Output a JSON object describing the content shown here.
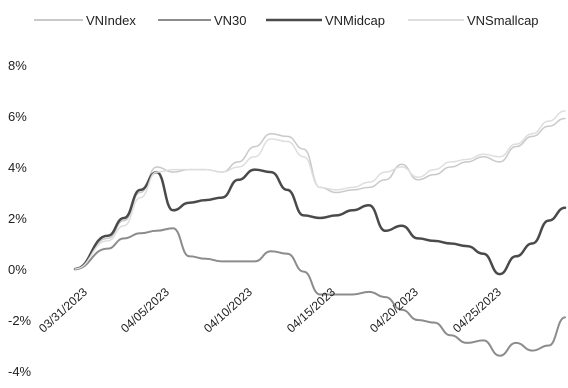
{
  "chart_data": {
    "type": "line",
    "title": "",
    "xlabel": "",
    "ylabel": "",
    "ylim": [
      -4,
      8
    ],
    "y_ticks": [
      "-4%",
      "-2%",
      "0%",
      "2%",
      "4%",
      "6%",
      "8%"
    ],
    "x_dates": [
      "03/31/2023",
      "04/05/2023",
      "04/10/2023",
      "04/15/2023",
      "04/20/2023",
      "04/25/2023"
    ],
    "legend_position": "top",
    "grid": false,
    "series": [
      {
        "name": "VNIndex",
        "color": "#c9c9c9",
        "width": 1.5,
        "points": [
          [
            0,
            0
          ],
          [
            2,
            1.2
          ],
          [
            3,
            1.9
          ],
          [
            4,
            3
          ],
          [
            5,
            4
          ],
          [
            6,
            3.8
          ],
          [
            7,
            3.9
          ],
          [
            8,
            3.9
          ],
          [
            9,
            3.8
          ],
          [
            10,
            4.2
          ],
          [
            11,
            4.8
          ],
          [
            12,
            5.3
          ],
          [
            13,
            5.2
          ],
          [
            14,
            4.7
          ],
          [
            15,
            3.2
          ],
          [
            16,
            3
          ],
          [
            17,
            3.1
          ],
          [
            18,
            3.2
          ],
          [
            19,
            3.5
          ],
          [
            20,
            4.1
          ],
          [
            21,
            3.5
          ],
          [
            22,
            3.7
          ],
          [
            23,
            4
          ],
          [
            24,
            4.2
          ],
          [
            25,
            4.4
          ],
          [
            26,
            4.2
          ],
          [
            27,
            4.8
          ],
          [
            28,
            5.2
          ],
          [
            29,
            5.6
          ],
          [
            30,
            5.9
          ]
        ]
      },
      {
        "name": "VN30",
        "color": "#8c8c8c",
        "width": 2,
        "points": [
          [
            0,
            0
          ],
          [
            2,
            0.8
          ],
          [
            3,
            1.2
          ],
          [
            4,
            1.4
          ],
          [
            5,
            1.5
          ],
          [
            6,
            1.6
          ],
          [
            7,
            0.5
          ],
          [
            8,
            0.4
          ],
          [
            9,
            0.3
          ],
          [
            10,
            0.3
          ],
          [
            11,
            0.3
          ],
          [
            12,
            0.7
          ],
          [
            13,
            0.6
          ],
          [
            14,
            -0.1
          ],
          [
            15,
            -1
          ],
          [
            16,
            -1
          ],
          [
            17,
            -1
          ],
          [
            18,
            -0.9
          ],
          [
            19,
            -1.1
          ],
          [
            20,
            -1.6
          ],
          [
            21,
            -2
          ],
          [
            22,
            -2.1
          ],
          [
            23,
            -2.6
          ],
          [
            24,
            -2.9
          ],
          [
            25,
            -2.8
          ],
          [
            26,
            -3.4
          ],
          [
            27,
            -2.9
          ],
          [
            28,
            -3.2
          ],
          [
            29,
            -3
          ],
          [
            30,
            -1.9
          ]
        ]
      },
      {
        "name": "VNMidcap",
        "color": "#4a4a4a",
        "width": 2.5,
        "points": [
          [
            0,
            0
          ],
          [
            2,
            1.3
          ],
          [
            3,
            2
          ],
          [
            4,
            3.1
          ],
          [
            5,
            3.8
          ],
          [
            6,
            2.3
          ],
          [
            7,
            2.6
          ],
          [
            8,
            2.7
          ],
          [
            9,
            2.8
          ],
          [
            10,
            3.5
          ],
          [
            11,
            3.9
          ],
          [
            12,
            3.8
          ],
          [
            13,
            3.1
          ],
          [
            14,
            2.1
          ],
          [
            15,
            2
          ],
          [
            16,
            2.1
          ],
          [
            17,
            2.3
          ],
          [
            18,
            2.5
          ],
          [
            19,
            1.5
          ],
          [
            20,
            1.7
          ],
          [
            21,
            1.2
          ],
          [
            22,
            1.1
          ],
          [
            23,
            1
          ],
          [
            24,
            0.9
          ],
          [
            25,
            0.6
          ],
          [
            26,
            -0.2
          ],
          [
            27,
            0.5
          ],
          [
            28,
            1
          ],
          [
            29,
            1.9
          ],
          [
            30,
            2.4
          ]
        ]
      },
      {
        "name": "VNSmallcap",
        "color": "#dedede",
        "width": 1.5,
        "points": [
          [
            0,
            0
          ],
          [
            2,
            1.1
          ],
          [
            3,
            1.7
          ],
          [
            4,
            2.8
          ],
          [
            5,
            3.8
          ],
          [
            6,
            3.9
          ],
          [
            7,
            3.9
          ],
          [
            8,
            3.9
          ],
          [
            9,
            3.8
          ],
          [
            10,
            4
          ],
          [
            11,
            4.4
          ],
          [
            12,
            5.1
          ],
          [
            13,
            5
          ],
          [
            14,
            4.4
          ],
          [
            15,
            3.2
          ],
          [
            16,
            3.1
          ],
          [
            17,
            3.2
          ],
          [
            18,
            3.4
          ],
          [
            19,
            3.8
          ],
          [
            20,
            4
          ],
          [
            21,
            3.6
          ],
          [
            22,
            3.9
          ],
          [
            23,
            4.2
          ],
          [
            24,
            4.3
          ],
          [
            25,
            4.5
          ],
          [
            26,
            4.4
          ],
          [
            27,
            4.9
          ],
          [
            28,
            5.3
          ],
          [
            29,
            5.8
          ],
          [
            30,
            6.2
          ]
        ]
      }
    ]
  }
}
